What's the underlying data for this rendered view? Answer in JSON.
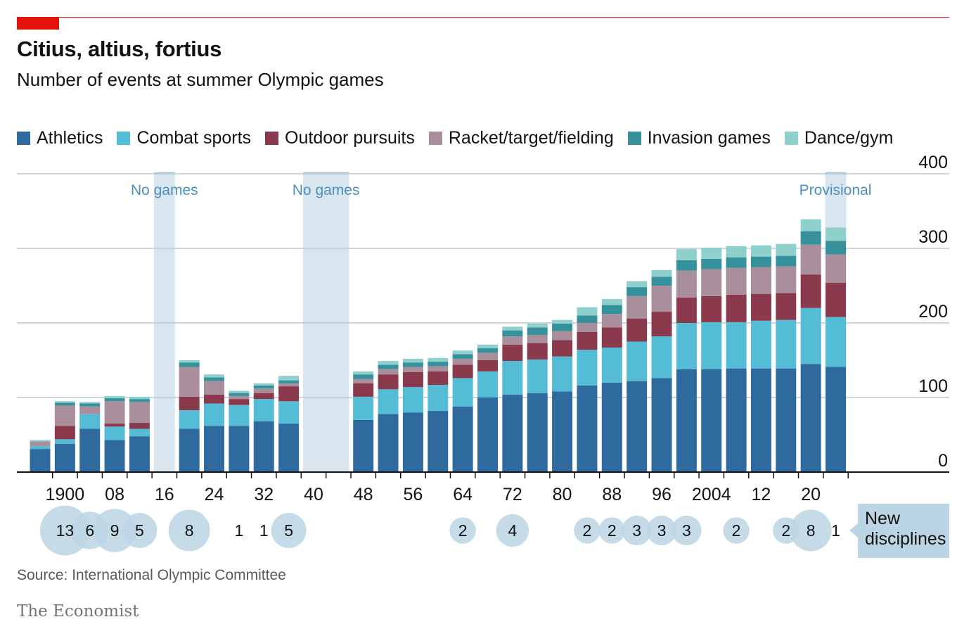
{
  "title": "Citius, altius, fortius",
  "subtitle": "Number of events at summer Olympic games",
  "source": "Source: International Olympic Committee",
  "brand": "The Economist",
  "colors": {
    "Athletics": "#2e6a9e",
    "Combat sports": "#55bcd6",
    "Outdoor pursuits": "#8b3a4d",
    "Racket/target/fielding": "#a98e9b",
    "Invasion games": "#35929c",
    "Dance/gym": "#8fd0cd"
  },
  "chart_data": {
    "type": "bar",
    "stacked": true,
    "title": "Citius, altius, fortius",
    "subtitle": "Number of events at summer Olympic games",
    "ylim": [
      0,
      400
    ],
    "yticks": [
      0,
      100,
      200,
      300,
      400
    ],
    "ytick_labels": [
      "0",
      "100",
      "200",
      "300",
      "400"
    ],
    "xlim": [
      1894,
      2026
    ],
    "xticks": [
      1900,
      1908,
      1916,
      1924,
      1932,
      1940,
      1948,
      1956,
      1964,
      1972,
      1980,
      1988,
      1996,
      2004,
      2012,
      2020
    ],
    "xtick_labels": [
      "1900",
      "08",
      "16",
      "24",
      "32",
      "40",
      "48",
      "56",
      "64",
      "72",
      "80",
      "88",
      "96",
      "2004",
      "12",
      "20"
    ],
    "legend_position": "top",
    "years": [
      1896,
      1900,
      1904,
      1908,
      1912,
      1920,
      1924,
      1928,
      1932,
      1936,
      1948,
      1952,
      1956,
      1960,
      1964,
      1968,
      1972,
      1976,
      1980,
      1984,
      1988,
      1992,
      1996,
      2000,
      2004,
      2008,
      2012,
      2016,
      2020,
      2024
    ],
    "series": [
      {
        "name": "Athletics",
        "values": [
          31,
          38,
          58,
          43,
          48,
          58,
          62,
          62,
          68,
          65,
          70,
          78,
          80,
          82,
          88,
          100,
          104,
          106,
          108,
          116,
          120,
          122,
          126,
          138,
          138,
          139,
          139,
          139,
          145,
          141
        ]
      },
      {
        "name": "Combat sports",
        "values": [
          4,
          6,
          20,
          18,
          10,
          25,
          30,
          28,
          30,
          30,
          31,
          33,
          34,
          35,
          38,
          35,
          45,
          45,
          47,
          48,
          47,
          53,
          56,
          62,
          63,
          62,
          64,
          65,
          75,
          67
        ]
      },
      {
        "name": "Outdoor pursuits",
        "values": [
          0,
          18,
          0,
          4,
          8,
          18,
          12,
          8,
          8,
          20,
          18,
          20,
          20,
          18,
          18,
          15,
          22,
          22,
          22,
          24,
          27,
          31,
          33,
          34,
          35,
          37,
          36,
          36,
          45,
          46
        ]
      },
      {
        "name": "Racket/target/fielding",
        "values": [
          6,
          27,
          10,
          30,
          28,
          40,
          18,
          4,
          6,
          4,
          6,
          7,
          7,
          7,
          8,
          10,
          11,
          11,
          12,
          12,
          18,
          30,
          35,
          36,
          36,
          36,
          36,
          36,
          40,
          38
        ]
      },
      {
        "name": "Invasion games",
        "values": [
          0,
          4,
          4,
          4,
          4,
          6,
          5,
          4,
          4,
          4,
          6,
          6,
          6,
          6,
          6,
          6,
          8,
          10,
          10,
          10,
          12,
          12,
          12,
          14,
          14,
          14,
          14,
          14,
          18,
          18
        ]
      },
      {
        "name": "Dance/gym",
        "values": [
          2,
          2,
          2,
          3,
          3,
          3,
          4,
          3,
          3,
          6,
          4,
          5,
          5,
          5,
          5,
          5,
          5,
          5,
          5,
          11,
          8,
          8,
          9,
          15,
          15,
          15,
          15,
          16,
          16,
          18
        ]
      }
    ],
    "no_games": [
      {
        "year": 1916,
        "label": "No games"
      },
      {
        "year": 1940,
        "label": "No games"
      },
      {
        "year": 1944,
        "label": ""
      }
    ],
    "provisional": {
      "year": 2024,
      "label": "Provisional"
    },
    "new_disciplines": {
      "label": "New disciplines",
      "items": [
        {
          "year": 1900,
          "value": 13
        },
        {
          "year": 1904,
          "value": 6
        },
        {
          "year": 1908,
          "value": 9
        },
        {
          "year": 1912,
          "value": 5
        },
        {
          "year": 1920,
          "value": 8
        },
        {
          "year": 1928,
          "value": 1
        },
        {
          "year": 1932,
          "value": 1
        },
        {
          "year": 1936,
          "value": 5
        },
        {
          "year": 1964,
          "value": 2
        },
        {
          "year": 1972,
          "value": 4
        },
        {
          "year": 1984,
          "value": 2
        },
        {
          "year": 1988,
          "value": 2
        },
        {
          "year": 1992,
          "value": 3
        },
        {
          "year": 1996,
          "value": 3
        },
        {
          "year": 2000,
          "value": 3
        },
        {
          "year": 2008,
          "value": 2
        },
        {
          "year": 2016,
          "value": 2
        },
        {
          "year": 2020,
          "value": 8
        },
        {
          "year": 2024,
          "value": 1
        }
      ]
    }
  }
}
